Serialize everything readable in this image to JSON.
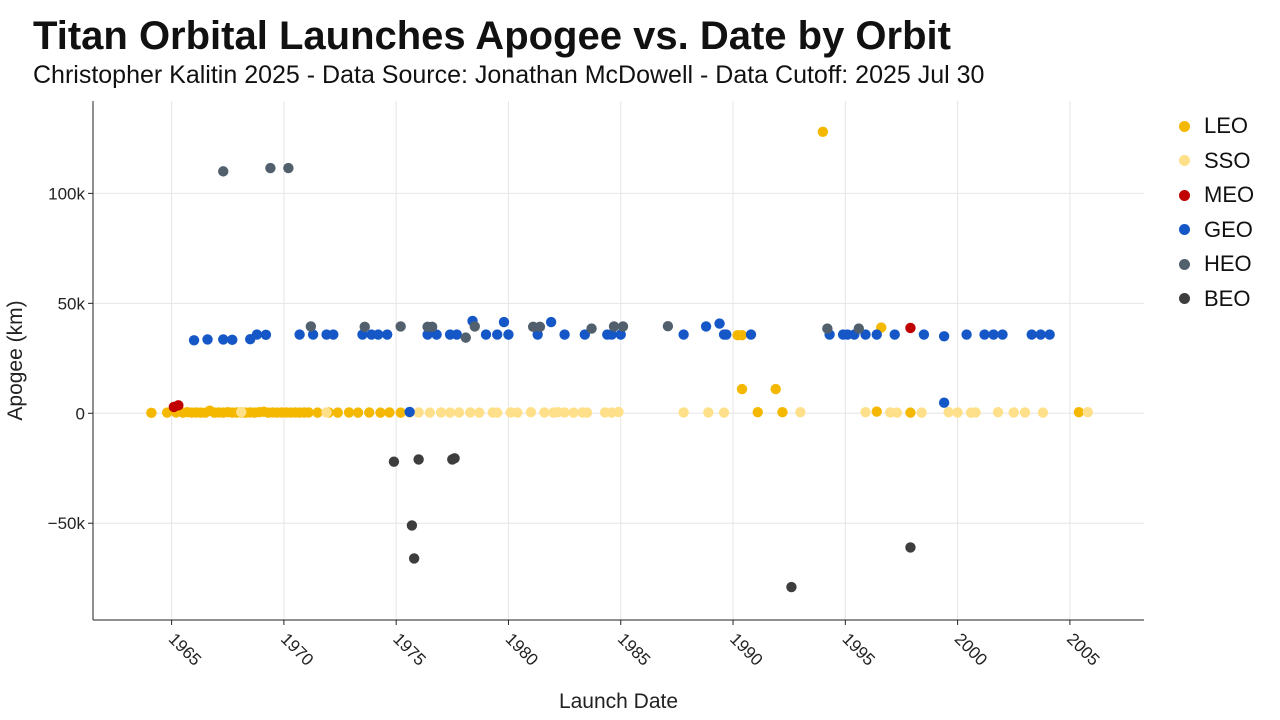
{
  "title": "Titan Orbital Launches Apogee vs. Date by Orbit",
  "subtitle": "Christopher Kalitin 2025 - Data Source: Jonathan McDowell - Data Cutoff: 2025 Jul 30",
  "chart_data": {
    "type": "scatter",
    "xlabel": "Launch Date",
    "ylabel": "Apogee (km)",
    "x_ticks": [
      "1965",
      "1970",
      "1975",
      "1980",
      "1985",
      "1990",
      "1995",
      "2000",
      "2005"
    ],
    "x_tick_values": [
      1965,
      1970,
      1975,
      1980,
      1985,
      1990,
      1995,
      2000,
      2005
    ],
    "y_ticks": [
      "−50k",
      "0",
      "50k",
      "100k"
    ],
    "y_tick_values": [
      -50000,
      0,
      50000,
      100000
    ],
    "xlim": [
      1961.5,
      2008.3
    ],
    "ylim": [
      -94000,
      142000
    ],
    "grid": true,
    "legend_position": "right",
    "series": [
      {
        "name": "LEO",
        "color": "#f5b800",
        "points": [
          [
            1964.1,
            200
          ],
          [
            1964.8,
            300
          ],
          [
            1965.2,
            400
          ],
          [
            1965.5,
            300
          ],
          [
            1965.7,
            500
          ],
          [
            1965.9,
            300
          ],
          [
            1966.1,
            400
          ],
          [
            1966.3,
            300
          ],
          [
            1966.5,
            250
          ],
          [
            1966.7,
            1200
          ],
          [
            1966.9,
            300
          ],
          [
            1967.1,
            400
          ],
          [
            1967.3,
            300
          ],
          [
            1967.5,
            500
          ],
          [
            1967.7,
            300
          ],
          [
            1967.9,
            350
          ],
          [
            1968.1,
            400
          ],
          [
            1968.3,
            300
          ],
          [
            1968.5,
            400
          ],
          [
            1968.7,
            300
          ],
          [
            1968.9,
            500
          ],
          [
            1969.1,
            700
          ],
          [
            1969.3,
            300
          ],
          [
            1969.5,
            400
          ],
          [
            1969.7,
            300
          ],
          [
            1969.9,
            350
          ],
          [
            1970.1,
            400
          ],
          [
            1970.3,
            300
          ],
          [
            1970.5,
            400
          ],
          [
            1970.7,
            300
          ],
          [
            1970.9,
            350
          ],
          [
            1971.1,
            400
          ],
          [
            1971.5,
            300
          ],
          [
            1972.0,
            350
          ],
          [
            1972.4,
            300
          ],
          [
            1972.9,
            400
          ],
          [
            1973.3,
            300
          ],
          [
            1973.8,
            350
          ],
          [
            1974.3,
            300
          ],
          [
            1974.7,
            400
          ],
          [
            1975.2,
            300
          ],
          [
            1990.2,
            35500
          ],
          [
            1990.4,
            35500
          ],
          [
            1990.4,
            11000
          ],
          [
            1991.9,
            11000
          ],
          [
            1991.1,
            500
          ],
          [
            1992.2,
            500
          ],
          [
            1994.0,
            128000
          ],
          [
            1996.4,
            800
          ],
          [
            1996.6,
            39000
          ],
          [
            1997.9,
            300
          ],
          [
            2005.4,
            500
          ]
        ]
      },
      {
        "name": "SSO",
        "color": "#ffe08a",
        "points": [
          [
            1968.1,
            600
          ],
          [
            1971.9,
            400
          ],
          [
            1975.6,
            300
          ],
          [
            1976.0,
            400
          ],
          [
            1976.5,
            300
          ],
          [
            1977.0,
            400
          ],
          [
            1977.4,
            300
          ],
          [
            1977.8,
            350
          ],
          [
            1978.3,
            400
          ],
          [
            1978.7,
            300
          ],
          [
            1979.3,
            400
          ],
          [
            1979.5,
            300
          ],
          [
            1980.1,
            400
          ],
          [
            1980.4,
            300
          ],
          [
            1981.0,
            500
          ],
          [
            1981.6,
            400
          ],
          [
            1982.0,
            300
          ],
          [
            1982.2,
            500
          ],
          [
            1982.5,
            400
          ],
          [
            1982.9,
            300
          ],
          [
            1983.3,
            400
          ],
          [
            1983.5,
            300
          ],
          [
            1984.3,
            400
          ],
          [
            1984.6,
            300
          ],
          [
            1984.9,
            600
          ],
          [
            1987.8,
            400
          ],
          [
            1988.9,
            400
          ],
          [
            1989.6,
            300
          ],
          [
            1993.0,
            500
          ],
          [
            1995.9,
            500
          ],
          [
            1997.0,
            400
          ],
          [
            1997.3,
            300
          ],
          [
            1998.4,
            300
          ],
          [
            1999.6,
            500
          ],
          [
            2000.0,
            400
          ],
          [
            2000.6,
            300
          ],
          [
            2000.8,
            400
          ],
          [
            2001.8,
            500
          ],
          [
            2002.5,
            400
          ],
          [
            2003.0,
            400
          ],
          [
            2003.8,
            300
          ],
          [
            2005.8,
            500
          ]
        ]
      },
      {
        "name": "MEO",
        "color": "#c00000",
        "points": [
          [
            1965.1,
            2900
          ],
          [
            1965.3,
            3600
          ],
          [
            1997.9,
            38800
          ]
        ]
      },
      {
        "name": "GEO",
        "color": "#1557c7",
        "points": [
          [
            1966.0,
            33200
          ],
          [
            1966.6,
            33600
          ],
          [
            1967.3,
            33600
          ],
          [
            1967.7,
            33400
          ],
          [
            1968.5,
            33700
          ],
          [
            1968.8,
            35800
          ],
          [
            1969.2,
            35700
          ],
          [
            1970.7,
            35800
          ],
          [
            1971.3,
            35800
          ],
          [
            1971.9,
            35800
          ],
          [
            1972.2,
            35800
          ],
          [
            1973.5,
            35800
          ],
          [
            1973.9,
            35800
          ],
          [
            1974.2,
            35800
          ],
          [
            1974.6,
            35800
          ],
          [
            1975.6,
            600
          ],
          [
            1976.4,
            35800
          ],
          [
            1976.8,
            35800
          ],
          [
            1977.4,
            35800
          ],
          [
            1977.7,
            35800
          ],
          [
            1978.4,
            42000
          ],
          [
            1979.0,
            35800
          ],
          [
            1979.5,
            35800
          ],
          [
            1979.8,
            41500
          ],
          [
            1980.0,
            35800
          ],
          [
            1981.3,
            35800
          ],
          [
            1981.9,
            41500
          ],
          [
            1982.5,
            35800
          ],
          [
            1983.4,
            35800
          ],
          [
            1984.4,
            35800
          ],
          [
            1984.6,
            35800
          ],
          [
            1985.0,
            35800
          ],
          [
            1987.8,
            35800
          ],
          [
            1988.8,
            39500
          ],
          [
            1989.4,
            40800
          ],
          [
            1989.6,
            35800
          ],
          [
            1989.7,
            35800
          ],
          [
            1990.8,
            35800
          ],
          [
            1994.3,
            35800
          ],
          [
            1994.9,
            35800
          ],
          [
            1995.1,
            35800
          ],
          [
            1995.4,
            35800
          ],
          [
            1995.9,
            35800
          ],
          [
            1996.4,
            35800
          ],
          [
            1997.2,
            35800
          ],
          [
            1998.5,
            35800
          ],
          [
            1999.4,
            35000
          ],
          [
            1999.4,
            4800
          ],
          [
            2000.4,
            35800
          ],
          [
            2001.2,
            35800
          ],
          [
            2001.6,
            35800
          ],
          [
            2002.0,
            35800
          ],
          [
            2003.3,
            35800
          ],
          [
            2003.7,
            35800
          ],
          [
            2004.1,
            35800
          ]
        ]
      },
      {
        "name": "HEO",
        "color": "#52606e",
        "points": [
          [
            1967.3,
            110000
          ],
          [
            1969.4,
            111500
          ],
          [
            1970.2,
            111500
          ],
          [
            1971.2,
            39500
          ],
          [
            1973.6,
            39300
          ],
          [
            1975.2,
            39500
          ],
          [
            1976.4,
            39300
          ],
          [
            1976.6,
            39300
          ],
          [
            1978.1,
            34400
          ],
          [
            1978.5,
            39500
          ],
          [
            1981.1,
            39300
          ],
          [
            1981.4,
            39300
          ],
          [
            1983.7,
            38500
          ],
          [
            1984.7,
            39500
          ],
          [
            1985.1,
            39500
          ],
          [
            1987.1,
            39600
          ],
          [
            1994.2,
            38500
          ],
          [
            1995.6,
            38500
          ]
        ]
      },
      {
        "name": "BEO",
        "color": "#3d3d3d",
        "points": [
          [
            1974.9,
            -22000
          ],
          [
            1976.0,
            -21000
          ],
          [
            1977.5,
            -21000
          ],
          [
            1977.6,
            -20500
          ],
          [
            1975.7,
            -51000
          ],
          [
            1975.8,
            -66000
          ],
          [
            1992.6,
            -79000
          ],
          [
            1997.9,
            -61000
          ]
        ]
      }
    ]
  }
}
